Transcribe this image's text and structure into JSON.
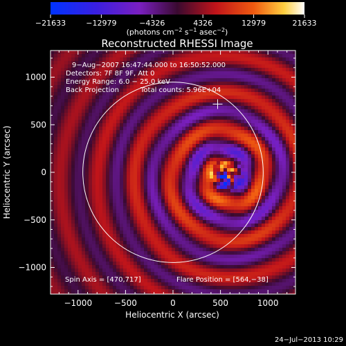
{
  "chart_data": {
    "type": "heatmap",
    "title": "Reconstructed RHESSI Image",
    "xlabel": "Heliocentric X (arcsec)",
    "ylabel": "Heliocentric Y (arcsec)",
    "xlim": [
      -1290,
      1290
    ],
    "ylim": [
      -1280,
      1280
    ],
    "x_ticks": [
      -1000,
      -500,
      0,
      500,
      1000
    ],
    "y_ticks": [
      1000,
      500,
      0,
      -500,
      -1000
    ],
    "x_tick_labels": [
      "−1000",
      "−500",
      "0",
      "500",
      "1000"
    ],
    "y_tick_labels": [
      "1000",
      "500",
      "0",
      "−500",
      "−1000"
    ],
    "colorbar": {
      "min": -21633,
      "max": 21633,
      "ticks": [
        -21633,
        -12979,
        -4326,
        4326,
        12979,
        21633
      ],
      "tick_labels": [
        "−21633",
        "−12979",
        "−4326",
        "4326",
        "12979",
        "21633"
      ],
      "unit_base": "(photons cm",
      "unit_exp1": "−2",
      "unit_mid1": " s",
      "unit_exp2": "−1",
      "unit_mid2": " asec",
      "unit_exp3": "−2",
      "unit_end": ")"
    },
    "annotations": {
      "time_range": "9−Aug−2007 16:47:44.000 to 16:50:52.000",
      "detectors": "Detectors: 7F 8F 9F, Att 0",
      "energy": "Energy Range: 6.0 − 25.0 keV",
      "method": "Back Projection",
      "counts": "Total counts: 5.96E+04",
      "spin_axis": "Spin Axis = [470,717]",
      "flare_position": "Flare Position = [564,−38]"
    },
    "flare_center": [
      564,
      -38
    ],
    "spin_axis_point": [
      470,
      717
    ],
    "solar_limb_radius_arcsec": 950,
    "solar_disk_center": [
      0,
      0
    ]
  },
  "footer": {
    "timestamp": "24−Jul−2013 10:29"
  },
  "colors": {
    "limb": "#ffffff",
    "background": "#000000"
  }
}
